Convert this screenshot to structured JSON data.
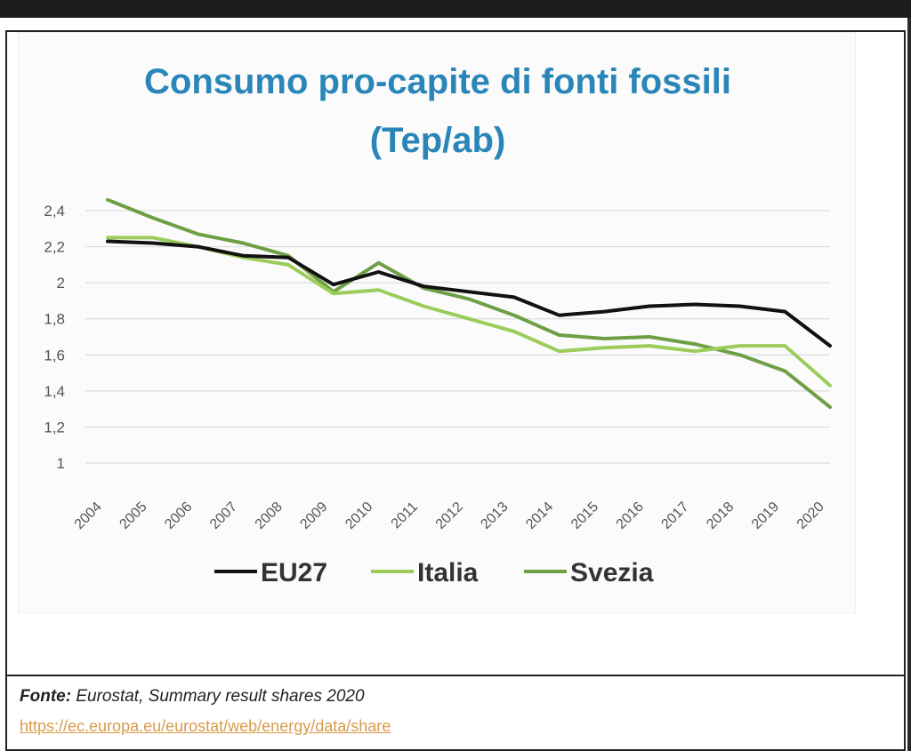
{
  "chart_data": {
    "type": "line",
    "title": "Consumo pro-capite di fonti fossili",
    "subtitle": "(Tep/ab)",
    "xlabel": "",
    "ylabel": "",
    "ylim": [
      1,
      2.4
    ],
    "y_ticks": [
      "1",
      "1,2",
      "1,4",
      "1,6",
      "1,8",
      "2",
      "2,2",
      "2,4"
    ],
    "y_tick_values": [
      1,
      1.2,
      1.4,
      1.6,
      1.8,
      2,
      2.2,
      2.4
    ],
    "categories": [
      "2004",
      "2005",
      "2006",
      "2007",
      "2008",
      "2009",
      "2010",
      "2011",
      "2012",
      "2013",
      "2014",
      "2015",
      "2016",
      "2017",
      "2018",
      "2019",
      "2020"
    ],
    "series": [
      {
        "name": "EU27",
        "color": "#111111",
        "values": [
          2.23,
          2.22,
          2.2,
          2.15,
          2.14,
          1.99,
          2.06,
          1.98,
          1.95,
          1.92,
          1.82,
          1.84,
          1.87,
          1.88,
          1.87,
          1.84,
          1.65
        ]
      },
      {
        "name": "Italia",
        "color": "#9ccc5a",
        "values": [
          2.25,
          2.25,
          2.2,
          2.14,
          2.1,
          1.94,
          1.96,
          1.87,
          1.8,
          1.73,
          1.62,
          1.64,
          1.65,
          1.62,
          1.65,
          1.65,
          1.43
        ]
      },
      {
        "name": "Svezia",
        "color": "#6f9f45",
        "values": [
          2.46,
          2.36,
          2.27,
          2.22,
          2.15,
          1.95,
          2.11,
          1.97,
          1.91,
          1.82,
          1.71,
          1.69,
          1.7,
          1.66,
          1.6,
          1.51,
          1.31
        ]
      }
    ],
    "grid": true,
    "legend": "bottom"
  },
  "source": {
    "label": "Fonte:",
    "text": "Eurostat, Summary result shares 2020",
    "link": "https://ec.europa.eu/eurostat/web/energy/data/share"
  }
}
